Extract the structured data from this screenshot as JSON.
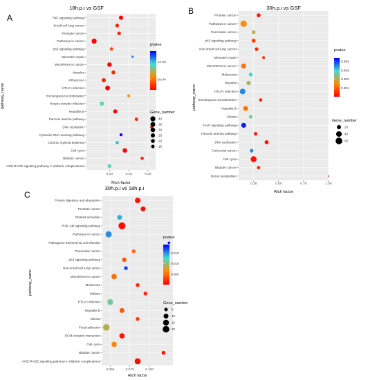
{
  "figure": {
    "panels": [
      {
        "letter": "A"
      },
      {
        "letter": "B"
      },
      {
        "letter": "C"
      }
    ],
    "legend_common": {
      "size_title": "Gene_number"
    }
  },
  "chart_data": [
    {
      "type": "scatter",
      "panel": "A",
      "title": "18h.p.i vs GSF",
      "xlabel": "Rich factor",
      "ylabel": "pathway_name",
      "xlim": [
        0.04,
        0.22
      ],
      "xticks": [
        0.1,
        0.15,
        0.2
      ],
      "xtick_labels": [
        "0.10",
        "0.15",
        "0.20"
      ],
      "grid": true,
      "color_legend": {
        "title": "pvalue",
        "ticks": [
          "1e-03",
          "5e-04"
        ],
        "tick_values": [
          0.001,
          0.0005
        ],
        "range": [
          0.0002,
          0.0013
        ],
        "colors": [
          "#ff0000",
          "#ff8c00",
          "#40e0d0",
          "#0000ff"
        ]
      },
      "size_legend": {
        "title": "Gene_number",
        "values": [
          40,
          35,
          30,
          25,
          20,
          15
        ],
        "labels": [
          "40",
          "35",
          "30",
          "25",
          "20",
          "15"
        ]
      },
      "size_range": [
        10,
        45
      ],
      "points": [
        {
          "pathway": "TNF signaling pathway",
          "x": 0.13,
          "gene_number": 25,
          "pvalue": 0.0002
        },
        {
          "pathway": "Small cell lung cancer",
          "x": 0.12,
          "gene_number": 18,
          "pvalue": 0.0003
        },
        {
          "pathway": "Prostate cancer",
          "x": 0.125,
          "gene_number": 18,
          "pvalue": 0.0003
        },
        {
          "pathway": "Pathways in cancer",
          "x": 0.06,
          "gene_number": 40,
          "pvalue": 0.0002
        },
        {
          "pathway": "p53 signaling pathway",
          "x": 0.105,
          "gene_number": 15,
          "pvalue": 0.0004
        },
        {
          "pathway": "Mismatch repair",
          "x": 0.16,
          "gene_number": 10,
          "pvalue": 0.0011
        },
        {
          "pathway": "MicroRNAs in cancer",
          "x": 0.1,
          "gene_number": 30,
          "pvalue": 0.0002
        },
        {
          "pathway": "Measles",
          "x": 0.11,
          "gene_number": 20,
          "pvalue": 0.0003
        },
        {
          "pathway": "Influenza A",
          "x": 0.085,
          "gene_number": 25,
          "pvalue": 0.0003
        },
        {
          "pathway": "HTLV-I infection",
          "x": 0.095,
          "gene_number": 35,
          "pvalue": 0.0002
        },
        {
          "pathway": "Homologous recombination",
          "x": 0.15,
          "gene_number": 12,
          "pvalue": 0.0006
        },
        {
          "pathway": "Herpes simplex infection",
          "x": 0.08,
          "gene_number": 25,
          "pvalue": 0.0009
        },
        {
          "pathway": "Hepatitis B",
          "x": 0.115,
          "gene_number": 25,
          "pvalue": 0.0002
        },
        {
          "pathway": "Fanconi anemia pathway",
          "x": 0.17,
          "gene_number": 15,
          "pvalue": 0.0003
        },
        {
          "pathway": "DNA replication",
          "x": 0.21,
          "gene_number": 14,
          "pvalue": 0.0002
        },
        {
          "pathway": "Cytosolic DNA-sensing pathway",
          "x": 0.13,
          "gene_number": 12,
          "pvalue": 0.0013
        },
        {
          "pathway": "Chronic myeloid leukemia",
          "x": 0.12,
          "gene_number": 14,
          "pvalue": 0.001
        },
        {
          "pathway": "Cell cycle",
          "x": 0.14,
          "gene_number": 30,
          "pvalue": 0.0002
        },
        {
          "pathway": "Bladder cancer",
          "x": 0.185,
          "gene_number": 14,
          "pvalue": 0.0003
        },
        {
          "pathway": "AGE-RAGE signaling pathway in diabetic complications",
          "x": 0.1,
          "gene_number": 20,
          "pvalue": 0.0009
        }
      ]
    },
    {
      "type": "scatter",
      "panel": "B",
      "title": "30h.p.i vs GSF",
      "xlabel": "Rich factor",
      "ylabel": "pathway_name",
      "xlim": [
        0.1,
        1.0
      ],
      "xticks": [
        0.25,
        0.5,
        0.75,
        1.0
      ],
      "xtick_labels": [
        "0.25",
        "0.50",
        "0.75",
        "1.00"
      ],
      "grid": true,
      "color_legend": {
        "title": "pvalue",
        "ticks": [
          "0.004",
          "0.003",
          "0.002",
          "0.001"
        ],
        "tick_values": [
          0.004,
          0.003,
          0.002,
          0.001
        ],
        "range": [
          0.0,
          0.0044
        ],
        "colors": [
          "#ff0000",
          "#ff8c00",
          "#40e0d0",
          "#0000ff"
        ]
      },
      "size_legend": {
        "title": "Gene_number",
        "values": [
          20,
          40,
          60
        ],
        "labels": [
          "20",
          "40",
          "60"
        ]
      },
      "size_range": [
        5,
        65
      ],
      "points": [
        {
          "pathway": "Prostate cancer",
          "x": 0.3,
          "gene_number": 18,
          "pvalue": 0.0003
        },
        {
          "pathway": "Pathways in cancer",
          "x": 0.15,
          "gene_number": 55,
          "pvalue": 0.0015
        },
        {
          "pathway": "Pancreatic cancer",
          "x": 0.25,
          "gene_number": 15,
          "pvalue": 0.002
        },
        {
          "pathway": "p53 signaling pathway",
          "x": 0.25,
          "gene_number": 18,
          "pvalue": 0.0006
        },
        {
          "pathway": "Non-small cell lung cancer",
          "x": 0.28,
          "gene_number": 15,
          "pvalue": 0.0004
        },
        {
          "pathway": "Mismatch repair",
          "x": 0.35,
          "gene_number": 10,
          "pvalue": 0.0005
        },
        {
          "pathway": "MicroRNAs in cancer",
          "x": 0.15,
          "gene_number": 30,
          "pvalue": 0.0012
        },
        {
          "pathway": "Melanoma",
          "x": 0.22,
          "gene_number": 15,
          "pvalue": 0.003
        },
        {
          "pathway": "Measles",
          "x": 0.2,
          "gene_number": 22,
          "pvalue": 0.0022
        },
        {
          "pathway": "HTLV-I infection",
          "x": 0.14,
          "gene_number": 40,
          "pvalue": 0.0035
        },
        {
          "pathway": "Homologous recombination",
          "x": 0.32,
          "gene_number": 12,
          "pvalue": 0.0003
        },
        {
          "pathway": "Hepatitis B",
          "x": 0.17,
          "gene_number": 28,
          "pvalue": 0.0012
        },
        {
          "pathway": "Glioma",
          "x": 0.22,
          "gene_number": 14,
          "pvalue": 0.0025
        },
        {
          "pathway": "FoxO signaling pathway",
          "x": 0.15,
          "gene_number": 30,
          "pvalue": 0.0042
        },
        {
          "pathway": "Fanconi anemia pathway",
          "x": 0.27,
          "gene_number": 15,
          "pvalue": 0.0003
        },
        {
          "pathway": "DNA replication",
          "x": 0.38,
          "gene_number": 18,
          "pvalue": 0.0002
        },
        {
          "pathway": "Colorectal cancer",
          "x": 0.23,
          "gene_number": 15,
          "pvalue": 0.0035
        },
        {
          "pathway": "Cell cycle",
          "x": 0.25,
          "gene_number": 45,
          "pvalue": 0.0002
        },
        {
          "pathway": "Bladder cancer",
          "x": 0.3,
          "gene_number": 14,
          "pvalue": 0.0005
        },
        {
          "pathway": "Boron metabolism",
          "x": 1.0,
          "gene_number": 2,
          "pvalue": 0.0004
        }
      ]
    },
    {
      "type": "scatter",
      "panel": "C",
      "title": "30h.p.i vs 18h.p.i",
      "xlabel": "Rich factor",
      "ylabel": "pathway_name",
      "xlim": [
        0.04,
        0.13
      ],
      "xticks": [
        0.05,
        0.075,
        0.1
      ],
      "xtick_labels": [
        "0.050",
        "0.075",
        "0.100"
      ],
      "grid": true,
      "color_legend": {
        "title": "pvalue",
        "ticks": [
          "0.015",
          "0.010",
          "0.005"
        ],
        "tick_values": [
          0.015,
          0.01,
          0.005
        ],
        "range": [
          0.0,
          0.019
        ],
        "colors": [
          "#ff0000",
          "#ff8c00",
          "#40e0d0",
          "#0000ff"
        ]
      },
      "size_legend": {
        "title": "Gene_number",
        "values": [
          5,
          10,
          15,
          20
        ],
        "labels": [
          "5",
          "10",
          "15",
          "20"
        ]
      },
      "size_range": [
        2,
        22
      ],
      "points": [
        {
          "pathway": "Protein digestion and absorption",
          "x": 0.085,
          "gene_number": 13,
          "pvalue": 0.0008
        },
        {
          "pathway": "Prostate cancer",
          "x": 0.092,
          "gene_number": 10,
          "pvalue": 0.0005
        },
        {
          "pathway": "Platelet activation",
          "x": 0.062,
          "gene_number": 10,
          "pvalue": 0.014
        },
        {
          "pathway": "PI3K-Akt signaling pathway",
          "x": 0.065,
          "gene_number": 22,
          "pvalue": 0.0005
        },
        {
          "pathway": "Pathways in cancer",
          "x": 0.048,
          "gene_number": 17,
          "pvalue": 0.015
        },
        {
          "pathway": "Pathogenic Escherichia coli infection",
          "x": 0.125,
          "gene_number": 3,
          "pvalue": 0.018
        },
        {
          "pathway": "Pancreatic cancer",
          "x": 0.08,
          "gene_number": 6,
          "pvalue": 0.005
        },
        {
          "pathway": "p53 signaling pathway",
          "x": 0.068,
          "gene_number": 8,
          "pvalue": 0.004
        },
        {
          "pathway": "Non-small cell lung cancer",
          "x": 0.07,
          "gene_number": 6,
          "pvalue": 0.017
        },
        {
          "pathway": "MicroRNAs in cancer",
          "x": 0.055,
          "gene_number": 12,
          "pvalue": 0.005
        },
        {
          "pathway": "Melanoma",
          "x": 0.085,
          "gene_number": 6,
          "pvalue": 0.002
        },
        {
          "pathway": "Malaria",
          "x": 0.095,
          "gene_number": 6,
          "pvalue": 0.002
        },
        {
          "pathway": "HTLV-I infection",
          "x": 0.05,
          "gene_number": 15,
          "pvalue": 0.011
        },
        {
          "pathway": "Hepatitis B",
          "x": 0.065,
          "gene_number": 10,
          "pvalue": 0.004
        },
        {
          "pathway": "Glioma",
          "x": 0.085,
          "gene_number": 6,
          "pvalue": 0.003
        },
        {
          "pathway": "Focal adhesion",
          "x": 0.045,
          "gene_number": 20,
          "pvalue": 0.009
        },
        {
          "pathway": "ECM-receptor interaction",
          "x": 0.065,
          "gene_number": 12,
          "pvalue": 0.001
        },
        {
          "pathway": "Cell cycle",
          "x": 0.055,
          "gene_number": 12,
          "pvalue": 0.006
        },
        {
          "pathway": "Bladder cancer",
          "x": 0.118,
          "gene_number": 6,
          "pvalue": 0.001
        },
        {
          "pathway": "AGE-RAGE signaling pathway in diabetic complications",
          "x": 0.085,
          "gene_number": 16,
          "pvalue": 0.0005
        }
      ]
    }
  ]
}
